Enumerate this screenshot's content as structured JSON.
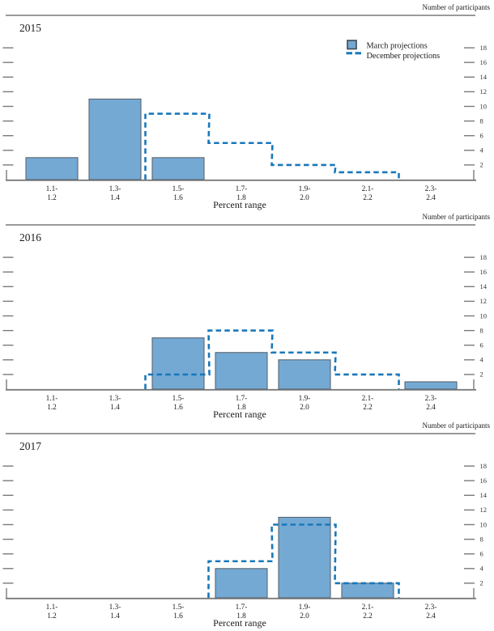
{
  "labels": {
    "participants": "Number of participants",
    "percent_range": "Percent range"
  },
  "legend": {
    "march_label": "March projections",
    "december_label": "December projections"
  },
  "colors": {
    "bar_fill": "#74a9d4",
    "bar_stroke": "#5a6570",
    "december_line": "#1878ba",
    "axis": "#7a7a7a",
    "separator": "#8c8c8c",
    "text": "#1c1c1c",
    "tick_label": "#333333"
  },
  "chart_data": {
    "type": "bar",
    "subtype": "histogram-with-step-outline",
    "xlabel": "Percent range",
    "right_axis_title": "Number of participants",
    "grid": false,
    "legend_position": "top-right-of-first-panel",
    "categories_line1": [
      "1.1-",
      "1.3-",
      "1.5-",
      "1.7-",
      "1.9-",
      "2.1-",
      "2.3-"
    ],
    "categories_line2": [
      "1.2",
      "1.4",
      "1.6",
      "1.8",
      "2.0",
      "2.2",
      "2.4"
    ],
    "yticks": [
      2,
      4,
      6,
      8,
      10,
      12,
      14,
      16,
      18
    ],
    "ylim": [
      0,
      19.5
    ],
    "panels": [
      {
        "year": "2015",
        "series": [
          {
            "name": "March projections",
            "style": "bar",
            "values": [
              3,
              11,
              3,
              0,
              0,
              0,
              0
            ]
          },
          {
            "name": "December projections",
            "style": "dashed-step",
            "values": [
              0,
              0,
              9,
              5,
              2,
              1,
              0
            ]
          }
        ]
      },
      {
        "year": "2016",
        "series": [
          {
            "name": "March projections",
            "style": "bar",
            "values": [
              0,
              0,
              7,
              5,
              4,
              0,
              1
            ]
          },
          {
            "name": "December projections",
            "style": "dashed-step",
            "values": [
              0,
              0,
              2,
              8,
              5,
              2,
              0
            ]
          }
        ]
      },
      {
        "year": "2017",
        "series": [
          {
            "name": "March projections",
            "style": "bar",
            "values": [
              0,
              0,
              0,
              4,
              11,
              2,
              0
            ]
          },
          {
            "name": "December projections",
            "style": "dashed-step",
            "values": [
              0,
              0,
              0,
              5,
              10,
              2,
              0
            ]
          }
        ]
      }
    ]
  }
}
